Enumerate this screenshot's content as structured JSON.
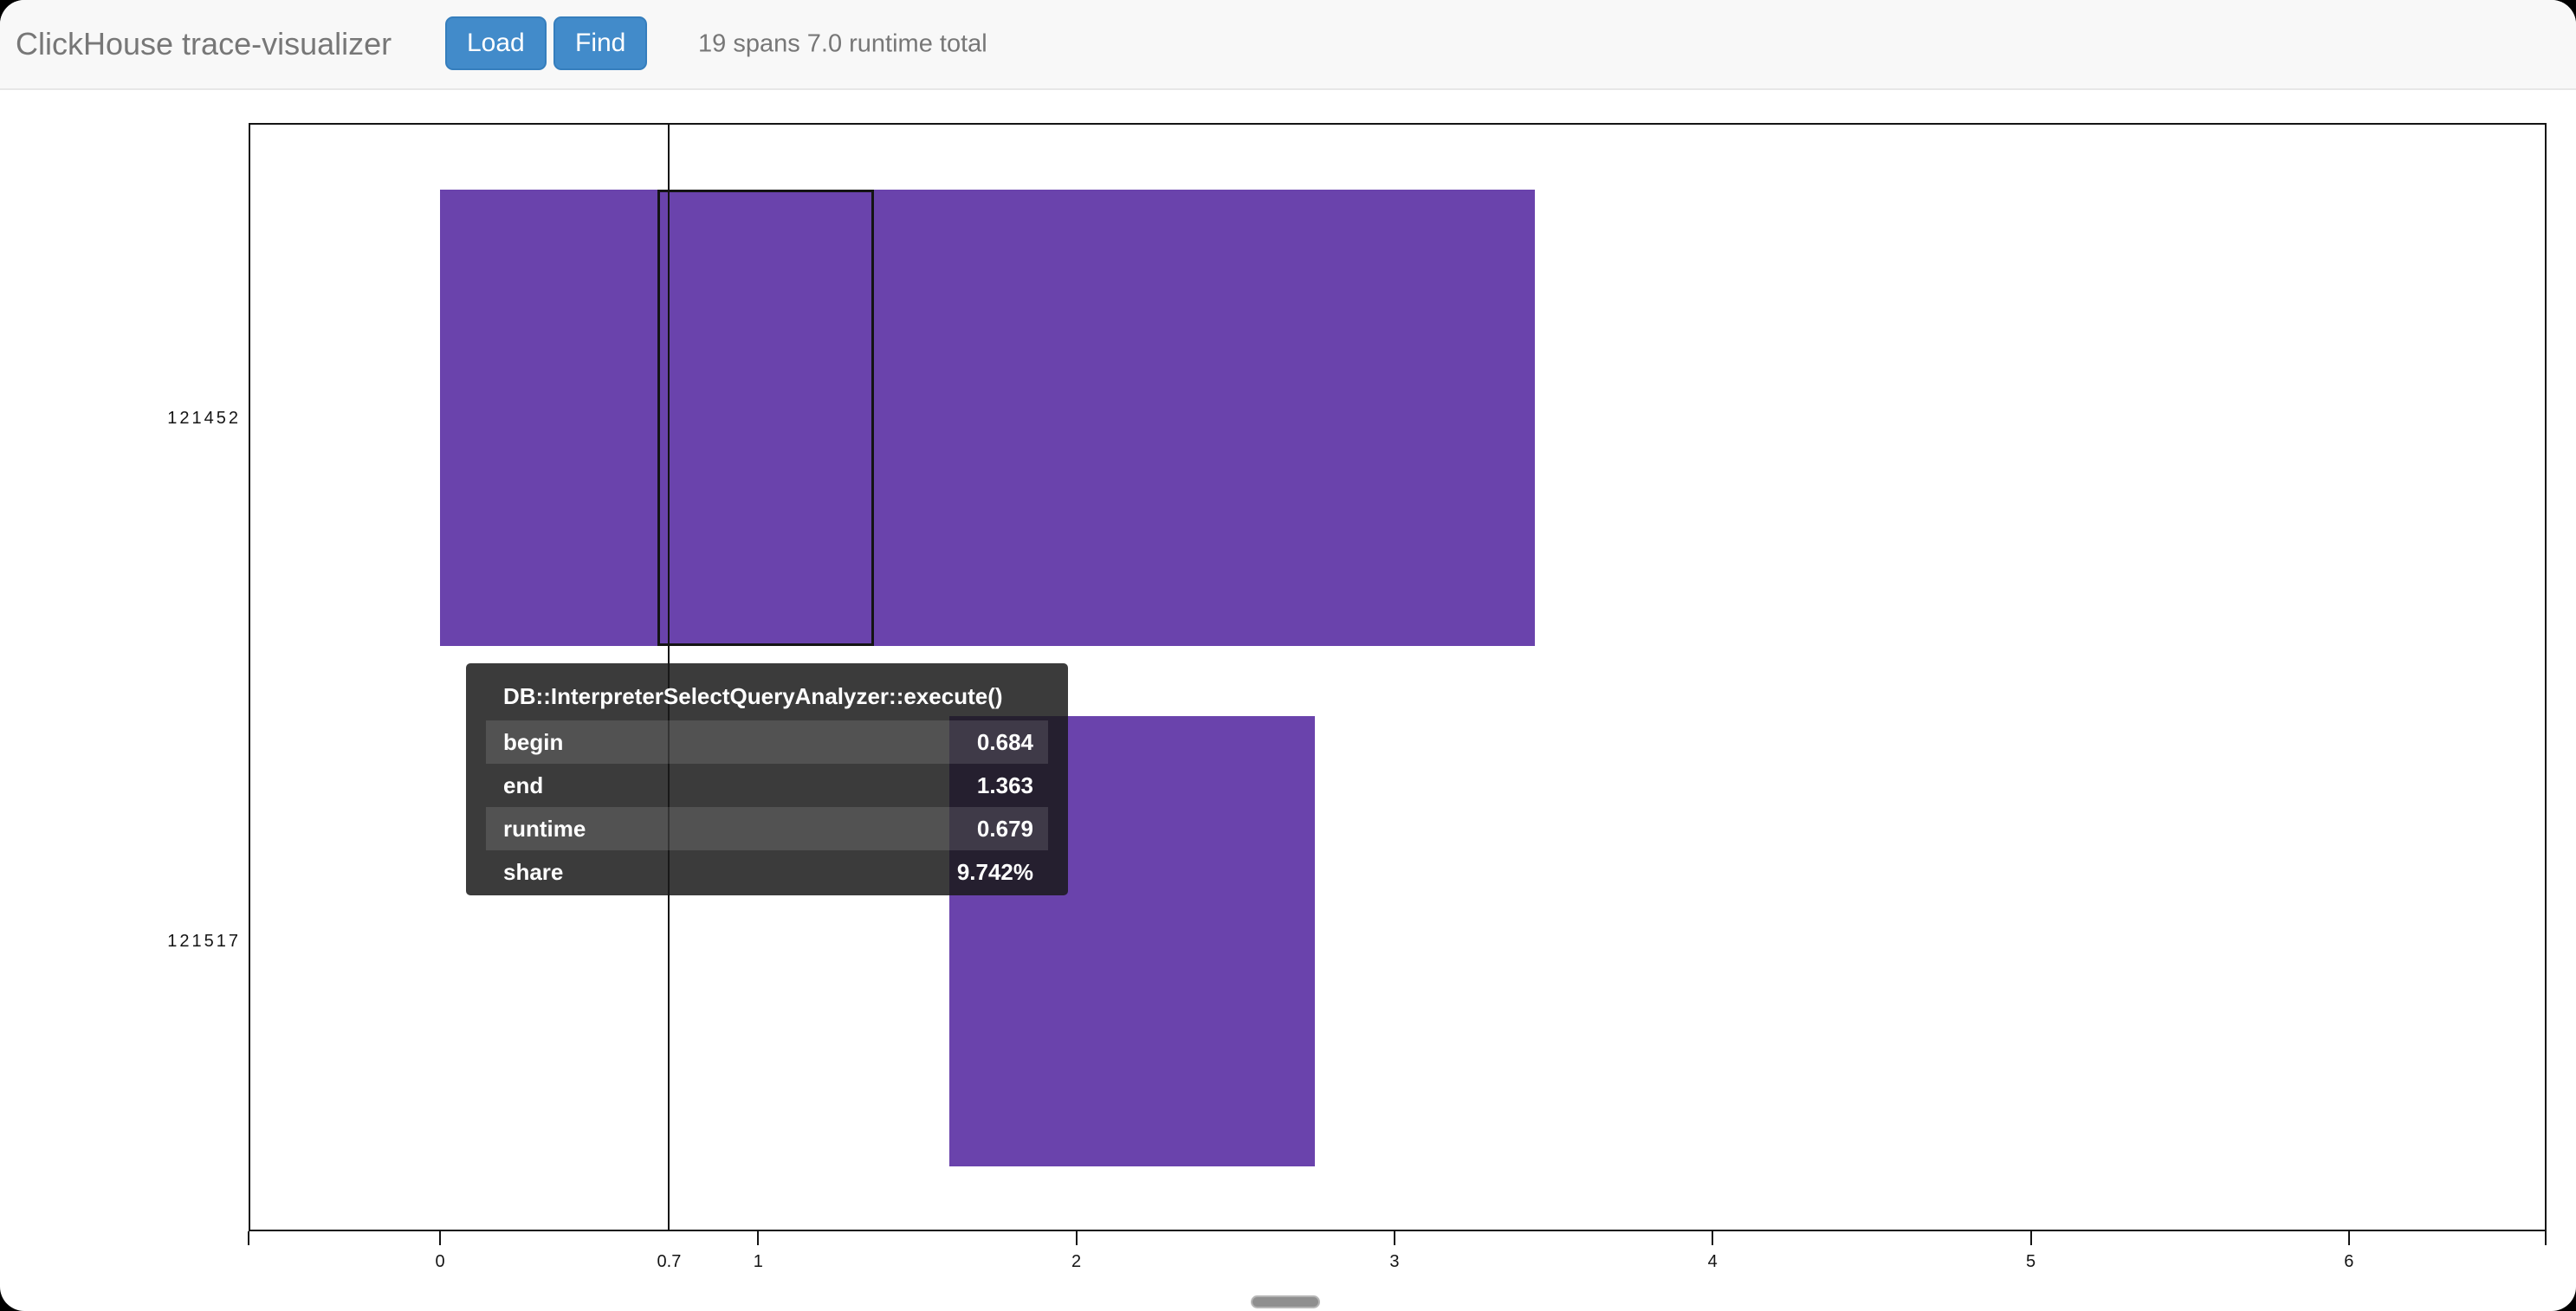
{
  "header": {
    "title": "ClickHouse trace-visualizer",
    "load_button": "Load",
    "find_button": "Find",
    "status": "19 spans 7.0 runtime total"
  },
  "chart_data": {
    "type": "gantt",
    "title": "",
    "xlabel": "",
    "ylabel": "",
    "x_ticks": [
      0,
      1,
      2,
      3,
      4,
      5,
      6
    ],
    "x_range": [
      -0.6,
      6.6
    ],
    "threads": [
      "121452",
      "121517"
    ],
    "spans": [
      {
        "thread": "121452",
        "begin": 0.0,
        "end": 3.44
      },
      {
        "thread": "121517",
        "begin": 1.6,
        "end": 2.75
      }
    ],
    "highlighted_span": {
      "thread": "121452",
      "name": "DB::InterpreterSelectQueryAnalyzer::execute()",
      "begin": 0.684,
      "end": 1.363,
      "runtime": 0.679,
      "share": "9.742%"
    },
    "cursor": {
      "label": "0.7"
    },
    "bar_color": "#6a43ac",
    "grid": false,
    "legend": false
  },
  "tooltip": {
    "title": "DB::InterpreterSelectQueryAnalyzer::execute()",
    "rows": [
      {
        "label": "begin",
        "value": "0.684"
      },
      {
        "label": "end",
        "value": "1.363"
      },
      {
        "label": "runtime",
        "value": "0.679"
      },
      {
        "label": "share",
        "value": "9.742%"
      }
    ]
  },
  "colors": {
    "accent_blue": "#428bca",
    "accent_blue_border": "#357ebd",
    "bar_purple": "#6a43ac",
    "header_bg": "#f8f8f8",
    "muted_text": "#777777",
    "tooltip_bg": "rgba(25,25,25,0.85)"
  }
}
